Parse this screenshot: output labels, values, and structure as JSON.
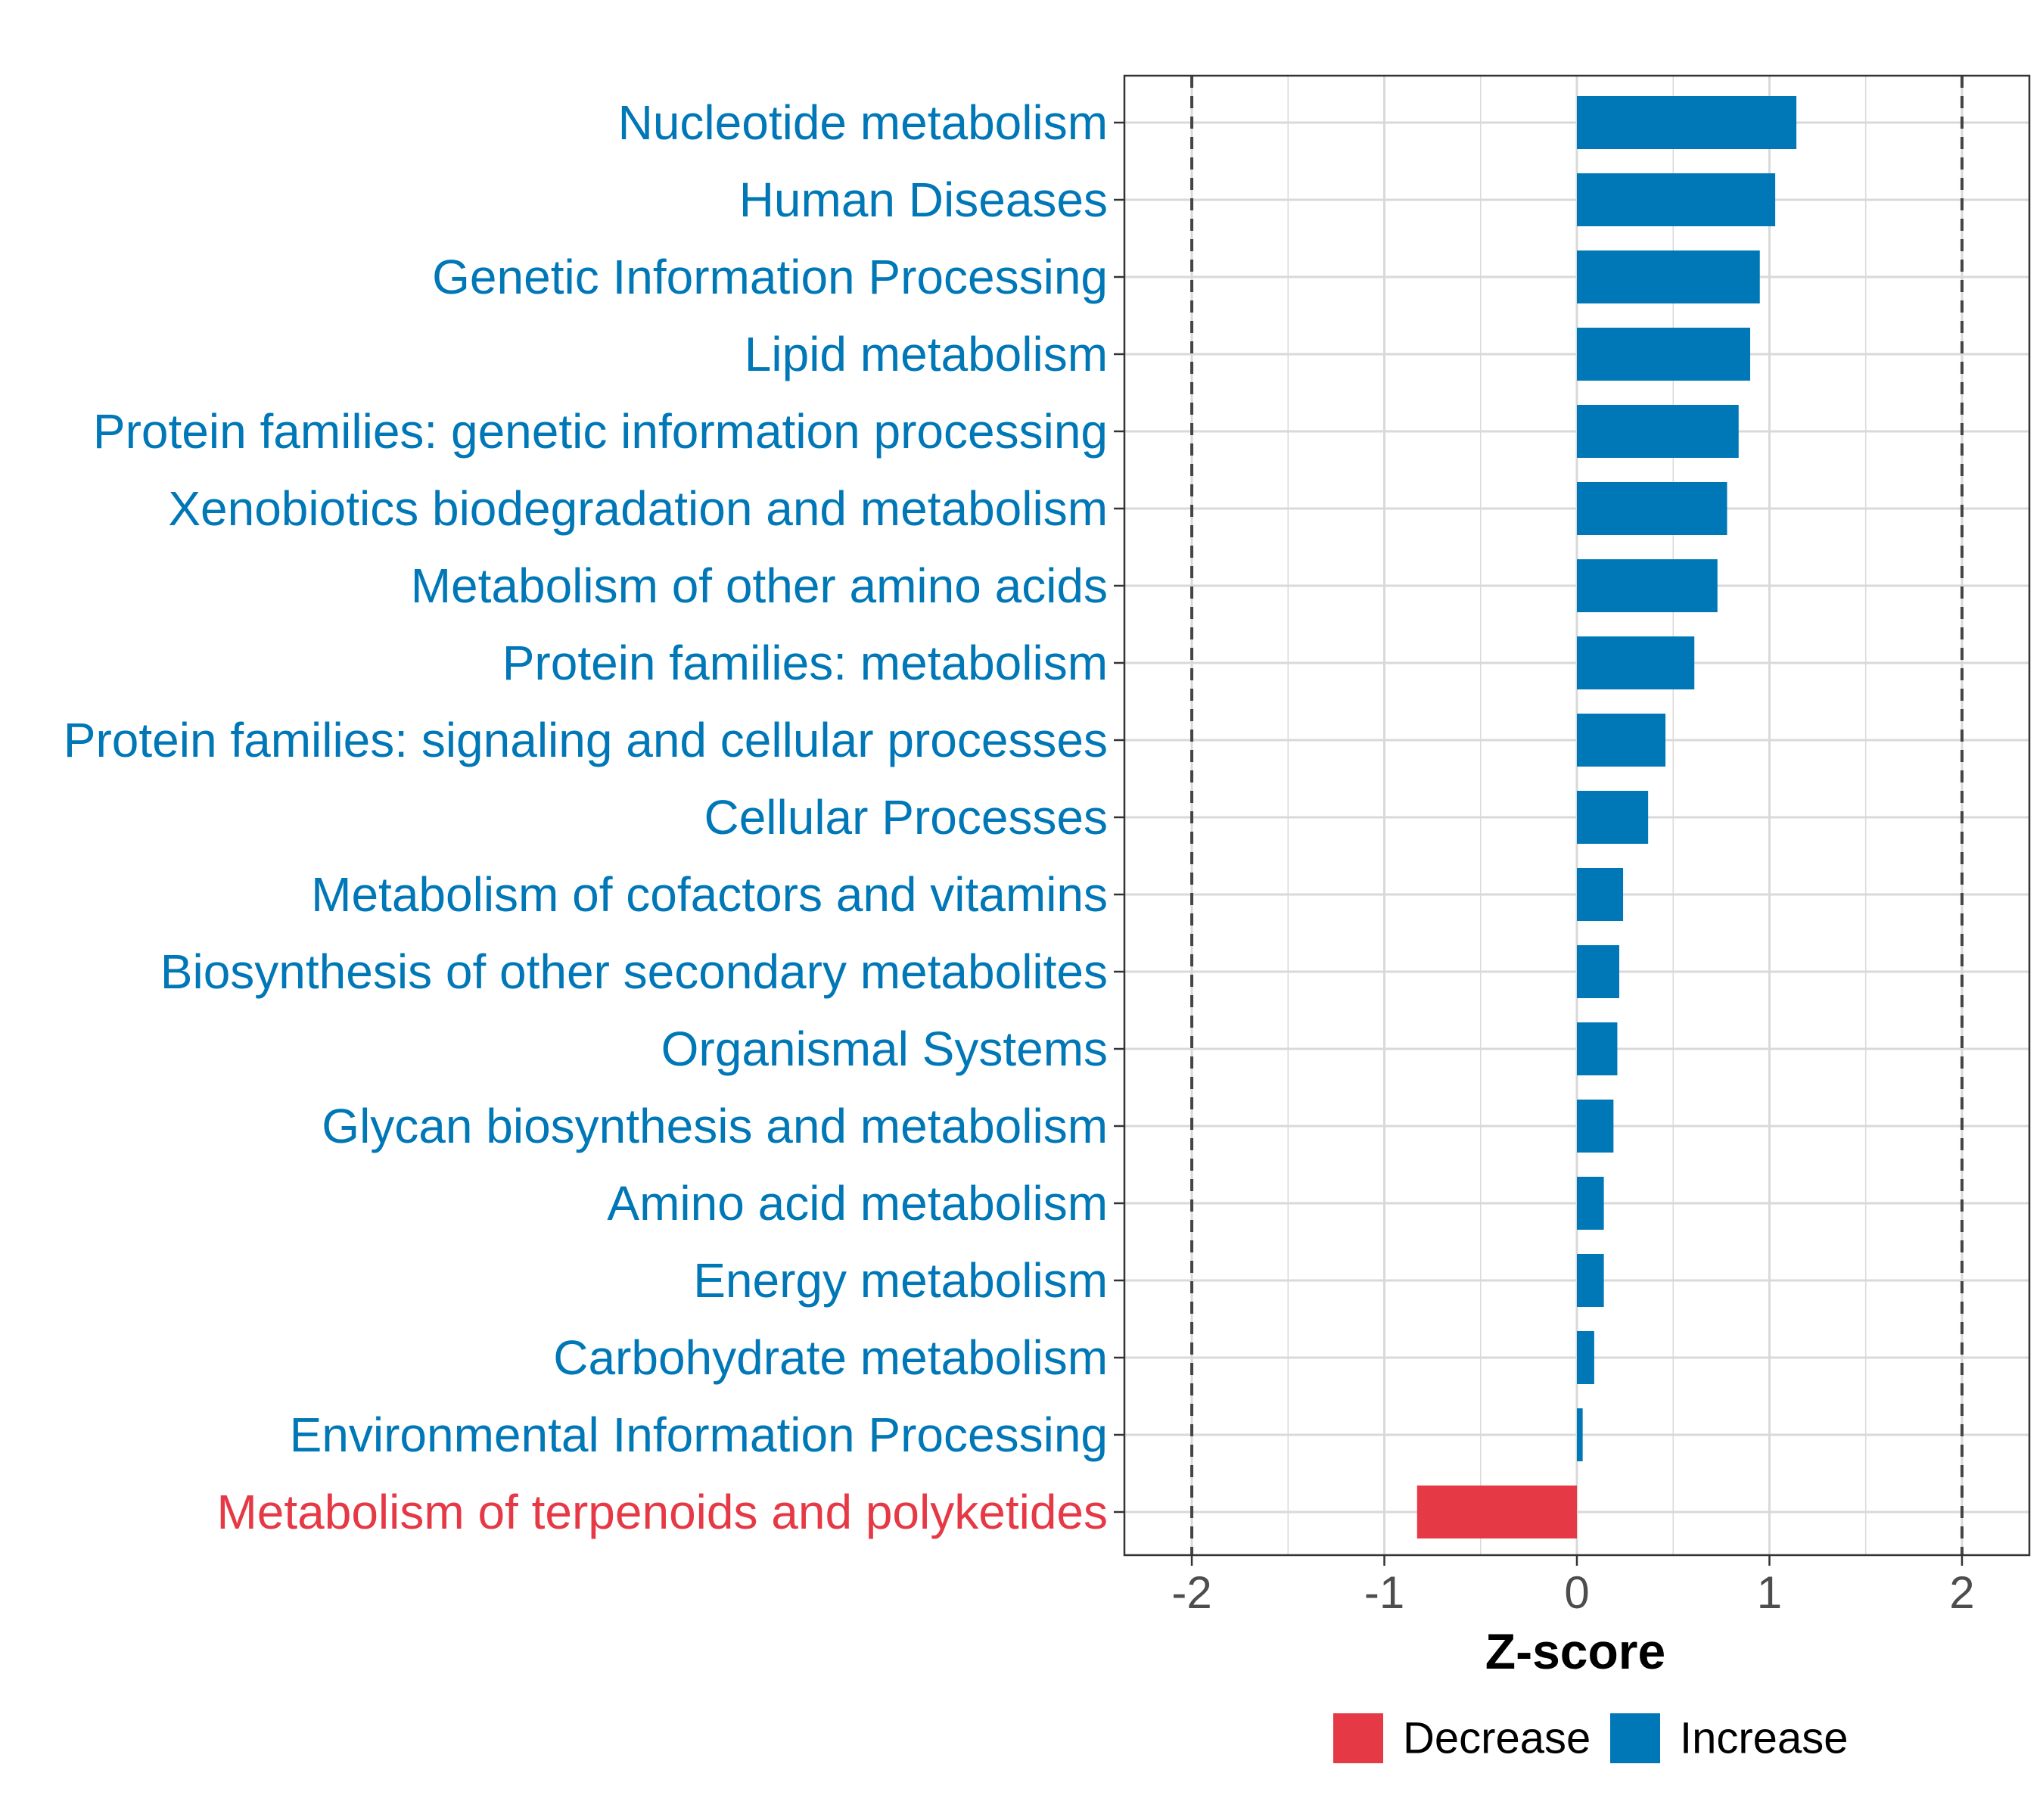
{
  "chart_data": {
    "type": "bar",
    "orientation": "horizontal",
    "title": "",
    "xlabel": "Z-score",
    "ylabel": "",
    "xlim": [
      -2.35,
      2.35
    ],
    "xticks": [
      -2,
      -1,
      0,
      1,
      2
    ],
    "xtick_labels": [
      "-2",
      "-1",
      "0",
      "1",
      "2"
    ],
    "reference_lines": [
      -2,
      2
    ],
    "grid": true,
    "categories": [
      "Nucleotide metabolism",
      "Human Diseases",
      "Genetic Information Processing",
      "Lipid metabolism",
      "Protein families: genetic information processing",
      "Xenobiotics biodegradation and metabolism",
      "Metabolism of other amino acids",
      "Protein families: metabolism",
      "Protein families: signaling and cellular processes",
      "Cellular Processes",
      "Metabolism of cofactors and vitamins",
      "Biosynthesis of other secondary metabolites",
      "Organismal Systems",
      "Glycan biosynthesis and metabolism",
      "Amino acid metabolism",
      "Energy metabolism",
      "Carbohydrate metabolism",
      "Environmental Information Processing",
      "Metabolism of terpenoids and polyketides"
    ],
    "values": [
      1.14,
      1.03,
      0.95,
      0.9,
      0.84,
      0.78,
      0.73,
      0.61,
      0.46,
      0.37,
      0.24,
      0.22,
      0.21,
      0.19,
      0.14,
      0.14,
      0.09,
      0.03,
      -0.83
    ],
    "groups": [
      "Increase",
      "Increase",
      "Increase",
      "Increase",
      "Increase",
      "Increase",
      "Increase",
      "Increase",
      "Increase",
      "Increase",
      "Increase",
      "Increase",
      "Increase",
      "Increase",
      "Increase",
      "Increase",
      "Increase",
      "Increase",
      "Decrease"
    ],
    "legend": {
      "position": "bottom",
      "entries": [
        {
          "label": "Decrease",
          "color": "#E63946"
        },
        {
          "label": "Increase",
          "color": "#0077B6"
        }
      ]
    },
    "colors": {
      "Increase": "#0077B6",
      "Decrease": "#E63946",
      "grid": "#D9D9D9",
      "reference_line": "#444444",
      "panel_border": "#333333"
    }
  }
}
